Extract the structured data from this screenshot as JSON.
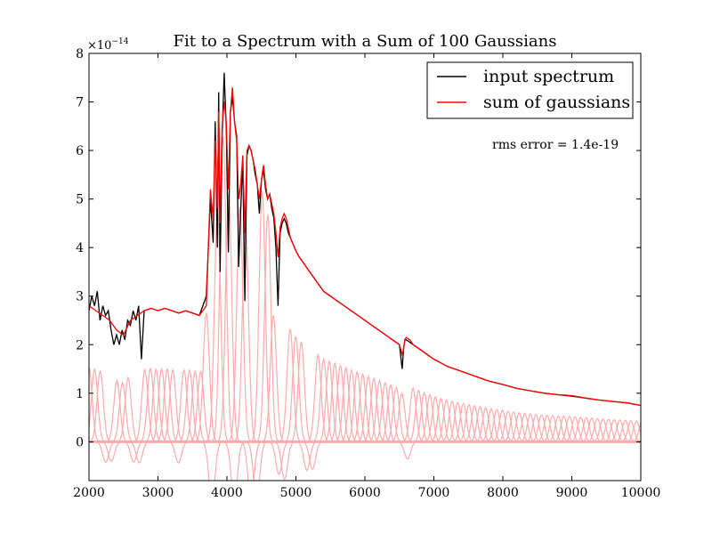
{
  "chart_data": {
    "type": "line",
    "title": "Fit to a Spectrum with a Sum of 100 Gaussians",
    "xlabel": "",
    "ylabel": "",
    "y_scale_label": "×10",
    "y_scale_exponent": "−14",
    "xlim": [
      2000,
      10000
    ],
    "ylim": [
      -0.8,
      8
    ],
    "x_ticks": [
      2000,
      3000,
      4000,
      5000,
      6000,
      7000,
      8000,
      9000,
      10000
    ],
    "y_ticks": [
      0,
      1,
      2,
      3,
      4,
      5,
      6,
      7,
      8
    ],
    "grid": false,
    "legend_position": "top-right",
    "annotation": "rms error = 1.4e-19",
    "series": [
      {
        "name": "input spectrum",
        "color": "#000000",
        "x": [
          2000,
          2040,
          2080,
          2120,
          2160,
          2200,
          2240,
          2280,
          2320,
          2360,
          2400,
          2440,
          2480,
          2520,
          2560,
          2600,
          2640,
          2680,
          2720,
          2760,
          2800,
          2900,
          3000,
          3100,
          3200,
          3300,
          3400,
          3500,
          3600,
          3700,
          3760,
          3800,
          3830,
          3860,
          3880,
          3900,
          3930,
          3960,
          3990,
          4020,
          4050,
          4080,
          4110,
          4140,
          4170,
          4200,
          4230,
          4260,
          4290,
          4320,
          4350,
          4380,
          4410,
          4440,
          4470,
          4500,
          4530,
          4560,
          4590,
          4620,
          4650,
          4680,
          4710,
          4740,
          4770,
          4800,
          4830,
          4860,
          4890,
          4920,
          4950,
          4980,
          5010,
          5050,
          5100,
          5150,
          5200,
          5300,
          5400,
          5500,
          5600,
          5700,
          5800,
          5900,
          6000,
          6100,
          6200,
          6300,
          6400,
          6500,
          6540,
          6560,
          6580,
          6600,
          6650,
          6700,
          6800,
          6900,
          7000,
          7200,
          7400,
          7600,
          7800,
          8000,
          8200,
          8400,
          8600,
          8800,
          9000,
          9200,
          9400,
          9600,
          9800,
          10000
        ],
        "values": [
          2.7,
          3.0,
          2.8,
          3.1,
          2.5,
          2.8,
          2.6,
          2.7,
          2.3,
          2.0,
          2.2,
          2.0,
          2.3,
          2.1,
          2.5,
          2.4,
          2.7,
          2.5,
          2.8,
          1.7,
          2.7,
          2.75,
          2.7,
          2.75,
          2.7,
          2.65,
          2.7,
          2.65,
          2.6,
          3.0,
          5.0,
          4.1,
          6.6,
          4.0,
          7.2,
          3.5,
          6.3,
          7.6,
          6.5,
          3.9,
          6.8,
          7.1,
          6.6,
          6.3,
          3.6,
          4.8,
          5.8,
          2.9,
          5.9,
          6.1,
          6.0,
          5.8,
          5.5,
          5.3,
          4.7,
          5.4,
          5.6,
          5.2,
          5.0,
          5.1,
          4.8,
          4.6,
          4.0,
          2.8,
          4.3,
          4.5,
          4.6,
          4.5,
          4.3,
          4.2,
          4.1,
          4.0,
          3.9,
          3.8,
          3.7,
          3.6,
          3.5,
          3.3,
          3.1,
          3.0,
          2.9,
          2.8,
          2.7,
          2.6,
          2.5,
          2.4,
          2.3,
          2.2,
          2.1,
          2.0,
          1.5,
          1.9,
          2.1,
          2.1,
          2.05,
          2.0,
          1.9,
          1.8,
          1.7,
          1.55,
          1.45,
          1.35,
          1.25,
          1.18,
          1.1,
          1.05,
          1.0,
          0.97,
          0.94,
          0.9,
          0.86,
          0.83,
          0.8,
          0.75
        ]
      },
      {
        "name": "sum of gaussians",
        "color": "#ff0000",
        "x": [
          2000,
          2100,
          2200,
          2300,
          2400,
          2500,
          2600,
          2700,
          2800,
          2900,
          3000,
          3100,
          3200,
          3300,
          3400,
          3500,
          3600,
          3700,
          3760,
          3800,
          3830,
          3860,
          3880,
          3900,
          3930,
          3960,
          3990,
          4020,
          4050,
          4080,
          4110,
          4140,
          4170,
          4200,
          4230,
          4260,
          4290,
          4320,
          4350,
          4380,
          4410,
          4440,
          4470,
          4500,
          4530,
          4560,
          4590,
          4620,
          4650,
          4680,
          4710,
          4740,
          4770,
          4800,
          4830,
          4860,
          4890,
          4920,
          4950,
          4980,
          5010,
          5050,
          5100,
          5150,
          5200,
          5300,
          5400,
          5500,
          5600,
          5700,
          5800,
          5900,
          6000,
          6100,
          6200,
          6300,
          6400,
          6500,
          6540,
          6560,
          6580,
          6600,
          6650,
          6700,
          6800,
          6900,
          7000,
          7200,
          7400,
          7600,
          7800,
          8000,
          8200,
          8400,
          8600,
          8800,
          9000,
          9200,
          9400,
          9600,
          9800,
          10000
        ],
        "values": [
          2.8,
          2.7,
          2.6,
          2.5,
          2.3,
          2.2,
          2.5,
          2.6,
          2.7,
          2.75,
          2.7,
          2.75,
          2.7,
          2.65,
          2.7,
          2.65,
          2.6,
          2.8,
          5.2,
          4.6,
          6.2,
          4.8,
          6.8,
          4.5,
          6.5,
          7.0,
          6.6,
          5.2,
          6.8,
          7.3,
          6.6,
          6.2,
          5.0,
          5.3,
          5.9,
          4.3,
          6.0,
          6.1,
          6.0,
          5.8,
          5.6,
          5.3,
          5.0,
          5.4,
          5.7,
          5.3,
          5.0,
          5.1,
          4.9,
          4.7,
          4.3,
          3.8,
          4.4,
          4.6,
          4.7,
          4.6,
          4.4,
          4.2,
          4.1,
          4.0,
          3.9,
          3.8,
          3.7,
          3.6,
          3.5,
          3.3,
          3.1,
          3.0,
          2.9,
          2.8,
          2.7,
          2.6,
          2.5,
          2.4,
          2.3,
          2.2,
          2.1,
          2.0,
          1.8,
          1.9,
          2.1,
          2.15,
          2.1,
          2.0,
          1.9,
          1.8,
          1.7,
          1.55,
          1.45,
          1.35,
          1.25,
          1.18,
          1.1,
          1.05,
          1.0,
          0.97,
          0.95,
          0.9,
          0.86,
          0.83,
          0.8,
          0.75
        ]
      }
    ],
    "components": {
      "color": "#ffaaaa",
      "centers_start": 2000,
      "centers_step": 81,
      "count": 100,
      "sigma": 45,
      "negative_near": [
        2300,
        2700,
        3300,
        3800,
        4100,
        4400,
        4800,
        5200,
        6600
      ]
    }
  }
}
